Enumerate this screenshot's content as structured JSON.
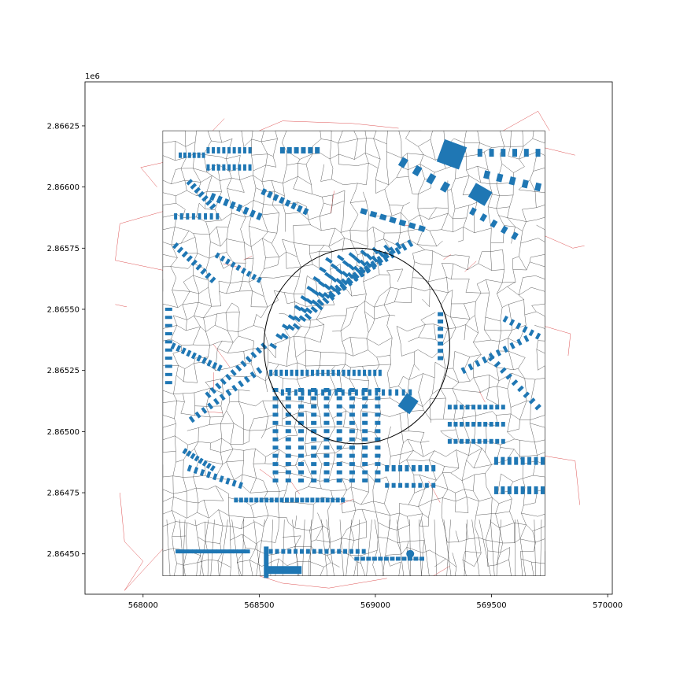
{
  "chart_data": {
    "type": "map",
    "title": "",
    "xlabel": "",
    "ylabel": "",
    "offset_label": "1e6",
    "xlim": [
      567750,
      570020
    ],
    "ylim": [
      2864335,
      2866430
    ],
    "x_ticks": [
      {
        "value": 568000,
        "label": "568000"
      },
      {
        "value": 568500,
        "label": "568500"
      },
      {
        "value": 569000,
        "label": "569000"
      },
      {
        "value": 569500,
        "label": "569500"
      },
      {
        "value": 570000,
        "label": "570000"
      }
    ],
    "y_ticks": [
      {
        "value": 2864500,
        "label": "2.86450"
      },
      {
        "value": 2864750,
        "label": "2.86475"
      },
      {
        "value": 2865000,
        "label": "2.86500"
      },
      {
        "value": 2865250,
        "label": "2.86525"
      },
      {
        "value": 2865500,
        "label": "2.86550"
      },
      {
        "value": 2865750,
        "label": "2.86575"
      },
      {
        "value": 2866000,
        "label": "2.86600"
      },
      {
        "value": 2866250,
        "label": "2.86625"
      }
    ],
    "tessellation_extent": {
      "x": [
        568085,
        569730
      ],
      "y": [
        2864410,
        2866230
      ]
    },
    "circle": {
      "center": [
        568920,
        2865350
      ],
      "radius": 400
    },
    "colors": {
      "buildings": "#1f77b4",
      "tessellation": "#000000",
      "streets": "#d62728",
      "axes": "#000000"
    },
    "grid": false,
    "legend": "none"
  }
}
